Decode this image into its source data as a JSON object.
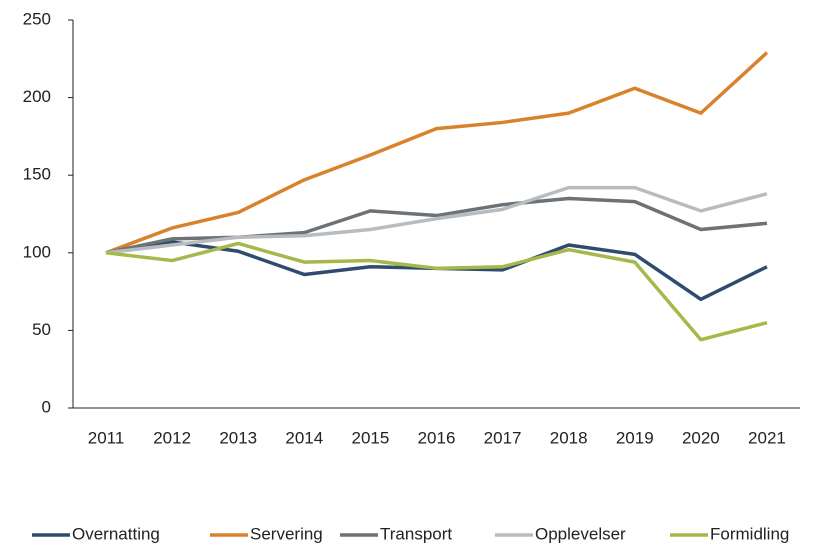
{
  "chart_data": {
    "type": "line",
    "categories": [
      "2011",
      "2012",
      "2013",
      "2014",
      "2015",
      "2016",
      "2017",
      "2018",
      "2019",
      "2020",
      "2021"
    ],
    "series": [
      {
        "name": "Overnatting",
        "color": "#2f4b6e",
        "values": [
          100,
          107,
          101,
          86,
          91,
          90,
          89,
          105,
          99,
          70,
          91
        ]
      },
      {
        "name": "Servering",
        "color": "#d9822b",
        "values": [
          100,
          116,
          126,
          147,
          163,
          180,
          184,
          190,
          206,
          190,
          229
        ]
      },
      {
        "name": "Transport",
        "color": "#6d7276",
        "values": [
          100,
          109,
          110,
          113,
          127,
          124,
          131,
          135,
          133,
          115,
          119
        ]
      },
      {
        "name": "Opplevelser",
        "color": "#b7bcc0",
        "values": [
          100,
          105,
          110,
          111,
          115,
          122,
          128,
          142,
          142,
          127,
          138
        ]
      },
      {
        "name": "Formidling",
        "color": "#a4b94a",
        "values": [
          100,
          95,
          106,
          94,
          95,
          90,
          91,
          102,
          94,
          44,
          55
        ]
      }
    ],
    "ylim": [
      0,
      250
    ],
    "yticks": [
      0,
      50,
      100,
      150,
      200,
      250
    ],
    "grid": false,
    "legend": "bottom"
  }
}
